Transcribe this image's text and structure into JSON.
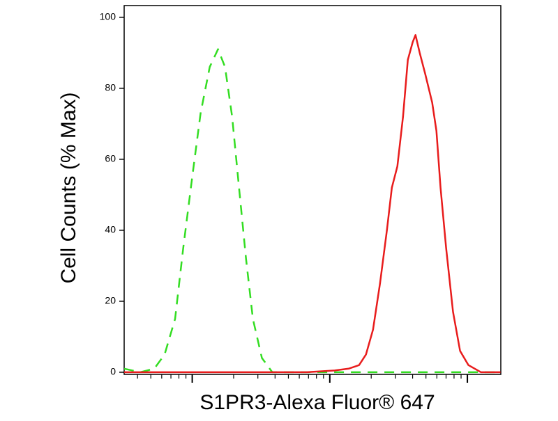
{
  "chart_data": {
    "type": "line",
    "x_label": "S1PR3-Alexa Fluor® 647",
    "y_label": "Cell Counts (% Max)",
    "xscale": "log",
    "xlim": [
      32,
      17500
    ],
    "xticks": [
      100,
      1000,
      10000
    ],
    "ylim": [
      -0.6,
      103.3
    ],
    "yticks": [
      0,
      20,
      40,
      60,
      80,
      100
    ],
    "series": [
      {
        "color": "#33dd22",
        "dash": true,
        "x": [
          32,
          42,
          53,
          63,
          75,
          86,
          100,
          115,
          134,
          154,
          173,
          195,
          219,
          246,
          276,
          321,
          382,
          542,
          1377,
          4426,
          17500
        ],
        "values": [
          1,
          0,
          1,
          5,
          15,
          35,
          55,
          73,
          86,
          91,
          86,
          72,
          52,
          32,
          15,
          4,
          0,
          0,
          0,
          0,
          0
        ]
      },
      {
        "color": "#e81c1c",
        "dash": false,
        "x": [
          32,
          681,
          1085,
          1370,
          1633,
          1832,
          2061,
          2317,
          2600,
          2825,
          3100,
          3404,
          3690,
          4008,
          4198,
          4500,
          4940,
          5550,
          5954,
          6385,
          7010,
          7870,
          8847,
          10180,
          12560,
          17420
        ],
        "values": [
          0,
          0,
          0.5,
          1,
          2,
          5,
          12,
          25,
          40,
          52,
          58,
          72,
          88,
          93,
          95,
          90,
          84,
          76,
          68,
          52,
          35,
          17,
          6,
          2,
          0,
          0
        ]
      }
    ]
  }
}
